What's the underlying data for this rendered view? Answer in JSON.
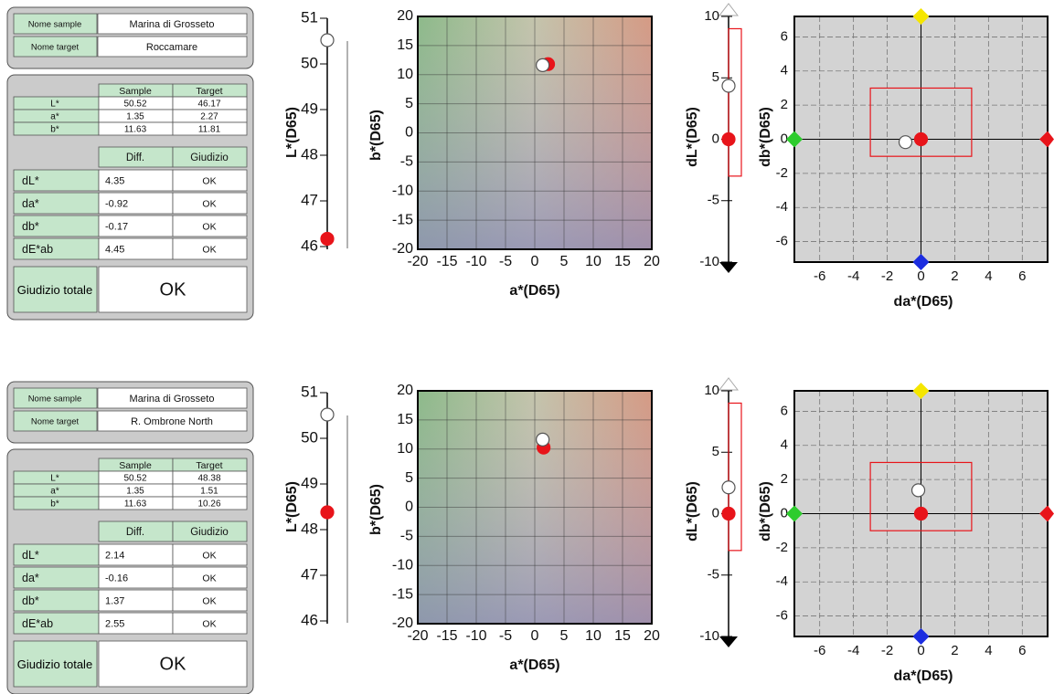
{
  "axes": {
    "l": {
      "label": "L*(D65)",
      "ylim": [
        46,
        51
      ],
      "yticks": [
        46,
        47,
        48,
        49,
        50,
        51
      ]
    },
    "ab": {
      "xlabel": "a*(D65)",
      "ylabel": "b*(D65)",
      "xlim": [
        -20,
        20
      ],
      "ylim": [
        -20,
        20
      ],
      "xticks": [
        -20,
        -15,
        -10,
        -5,
        0,
        5,
        10,
        15,
        20
      ],
      "yticks": [
        -20,
        -15,
        -10,
        -5,
        0,
        5,
        10,
        15,
        20
      ]
    },
    "dl": {
      "label": "dL*(D65)",
      "ylim": [
        -10,
        10
      ],
      "yticks": [
        -10,
        -5,
        0,
        5,
        10
      ],
      "tolerance": [
        -3,
        9
      ]
    },
    "dadb": {
      "xlabel": "da*(D65)",
      "ylabel": "db*(D65)",
      "xlim": [
        -7.5,
        7.5
      ],
      "ylim": [
        -7.2,
        7.2
      ],
      "xticks": [
        -6,
        -4,
        -2,
        0,
        2,
        4,
        6
      ],
      "yticks": [
        -6,
        -4,
        -2,
        0,
        2,
        4,
        6
      ],
      "tolerance_x": [
        -3,
        3
      ],
      "tolerance_y": [
        -1,
        3
      ]
    }
  },
  "panels": [
    {
      "names": {
        "rows": [
          [
            "Nome sample",
            "Marina di Grosseto"
          ],
          [
            "Nome target",
            "Roccamare"
          ]
        ]
      },
      "values_table": {
        "header": [
          "Sample",
          "Target"
        ],
        "rows": [
          [
            "L*",
            50.52,
            46.17
          ],
          [
            "a*",
            1.35,
            2.27
          ],
          [
            "b*",
            11.63,
            11.81
          ]
        ]
      },
      "diff_table": {
        "header": [
          "Diff.",
          "Giudizio"
        ],
        "rows": [
          [
            "dL*",
            4.35,
            "OK"
          ],
          [
            "da*",
            -0.92,
            "OK"
          ],
          [
            "db*",
            -0.17,
            "OK"
          ],
          [
            "dE*ab",
            4.45,
            "OK"
          ]
        ]
      },
      "total": {
        "label": "Giudizio totale",
        "value": "OK"
      }
    },
    {
      "names": {
        "rows": [
          [
            "Nome sample",
            "Marina di Grosseto"
          ],
          [
            "Nome target",
            "R. Ombrone North"
          ]
        ]
      },
      "values_table": {
        "header": [
          "Sample",
          "Target"
        ],
        "rows": [
          [
            "L*",
            50.52,
            48.38
          ],
          [
            "a*",
            1.35,
            1.51
          ],
          [
            "b*",
            11.63,
            10.26
          ]
        ]
      },
      "diff_table": {
        "header": [
          "Diff.",
          "Giudizio"
        ],
        "rows": [
          [
            "dL*",
            2.14,
            "OK"
          ],
          [
            "da*",
            -0.16,
            "OK"
          ],
          [
            "db*",
            1.37,
            "OK"
          ],
          [
            "dE*ab",
            2.55,
            "OK"
          ]
        ]
      },
      "total": {
        "label": "Giudizio totale",
        "value": "OK"
      }
    }
  ]
}
